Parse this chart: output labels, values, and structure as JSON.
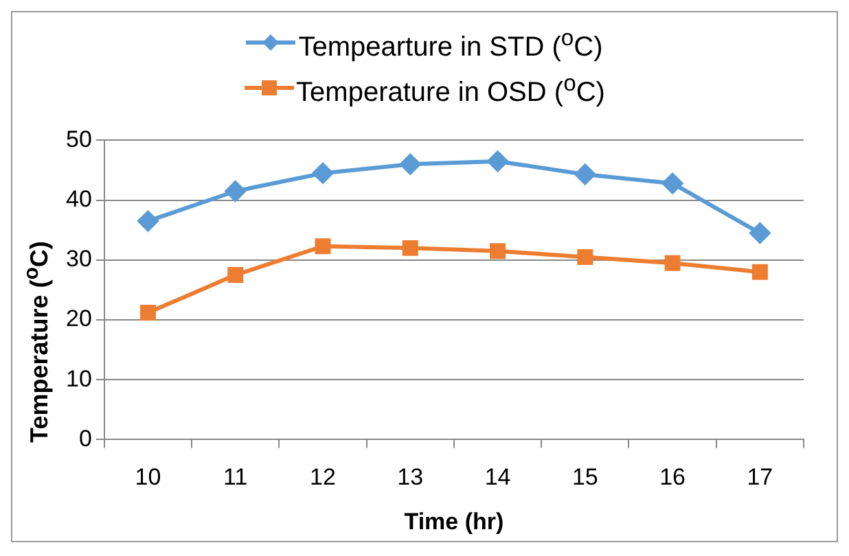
{
  "chart_data": {
    "type": "line",
    "xlabel": "Time (hr)",
    "ylabel": "Temperature ($^{o}$C)",
    "categories": [
      "10",
      "11",
      "12",
      "13",
      "14",
      "15",
      "16",
      "17"
    ],
    "series": [
      {
        "name": "Tempearture in STD ($^{o}$C)",
        "color": "#5b9bd5",
        "marker": "diamond",
        "values": [
          36.5,
          41.5,
          44.5,
          46,
          46.5,
          44.3,
          42.8,
          34.5
        ]
      },
      {
        "name": "Temperature in OSD ($^{o}$C)",
        "color": "#ed7d31",
        "marker": "square",
        "values": [
          21.2,
          27.5,
          32.3,
          32,
          31.5,
          30.5,
          29.5,
          28
        ]
      }
    ],
    "ylim": [
      0,
      50
    ],
    "yticks": [
      0,
      10,
      20,
      30,
      40,
      50
    ],
    "grid": "y",
    "legend": "top",
    "line_style": "solid"
  }
}
